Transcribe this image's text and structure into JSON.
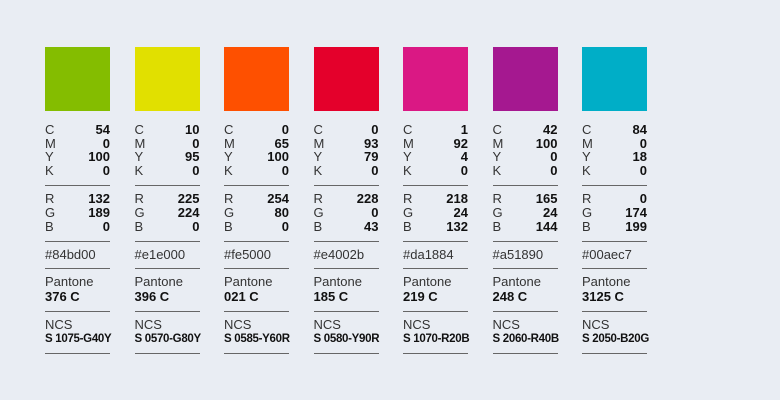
{
  "labels": {
    "cmyk": [
      "C",
      "M",
      "Y",
      "K"
    ],
    "rgb": [
      "R",
      "G",
      "B"
    ],
    "pantone": "Pantone",
    "ncs": "NCS"
  },
  "swatches": [
    {
      "hex": "#84bd00",
      "cmyk": [
        54,
        0,
        100,
        0
      ],
      "rgb": [
        132,
        189,
        0
      ],
      "pantone": "376 C",
      "ncs": "S 1075-G40Y"
    },
    {
      "hex": "#e1e000",
      "cmyk": [
        10,
        0,
        95,
        0
      ],
      "rgb": [
        225,
        224,
        0
      ],
      "pantone": "396 C",
      "ncs": "S 0570-G80Y"
    },
    {
      "hex": "#fe5000",
      "cmyk": [
        0,
        65,
        100,
        0
      ],
      "rgb": [
        254,
        80,
        0
      ],
      "pantone": "021 C",
      "ncs": "S 0585-Y60R"
    },
    {
      "hex": "#e4002b",
      "cmyk": [
        0,
        93,
        79,
        0
      ],
      "rgb": [
        228,
        0,
        43
      ],
      "pantone": "185 C",
      "ncs": "S 0580-Y90R"
    },
    {
      "hex": "#da1884",
      "cmyk": [
        1,
        92,
        4,
        0
      ],
      "rgb": [
        218,
        24,
        132
      ],
      "pantone": "219 C",
      "ncs": "S 1070-R20B"
    },
    {
      "hex": "#a51890",
      "cmyk": [
        42,
        100,
        0,
        0
      ],
      "rgb": [
        165,
        24,
        144
      ],
      "pantone": "248 C",
      "ncs": "S 2060-R40B"
    },
    {
      "hex": "#00aec7",
      "cmyk": [
        84,
        0,
        18,
        0
      ],
      "rgb": [
        0,
        174,
        199
      ],
      "pantone": "3125 C",
      "ncs": "S 2050-B20G"
    }
  ]
}
